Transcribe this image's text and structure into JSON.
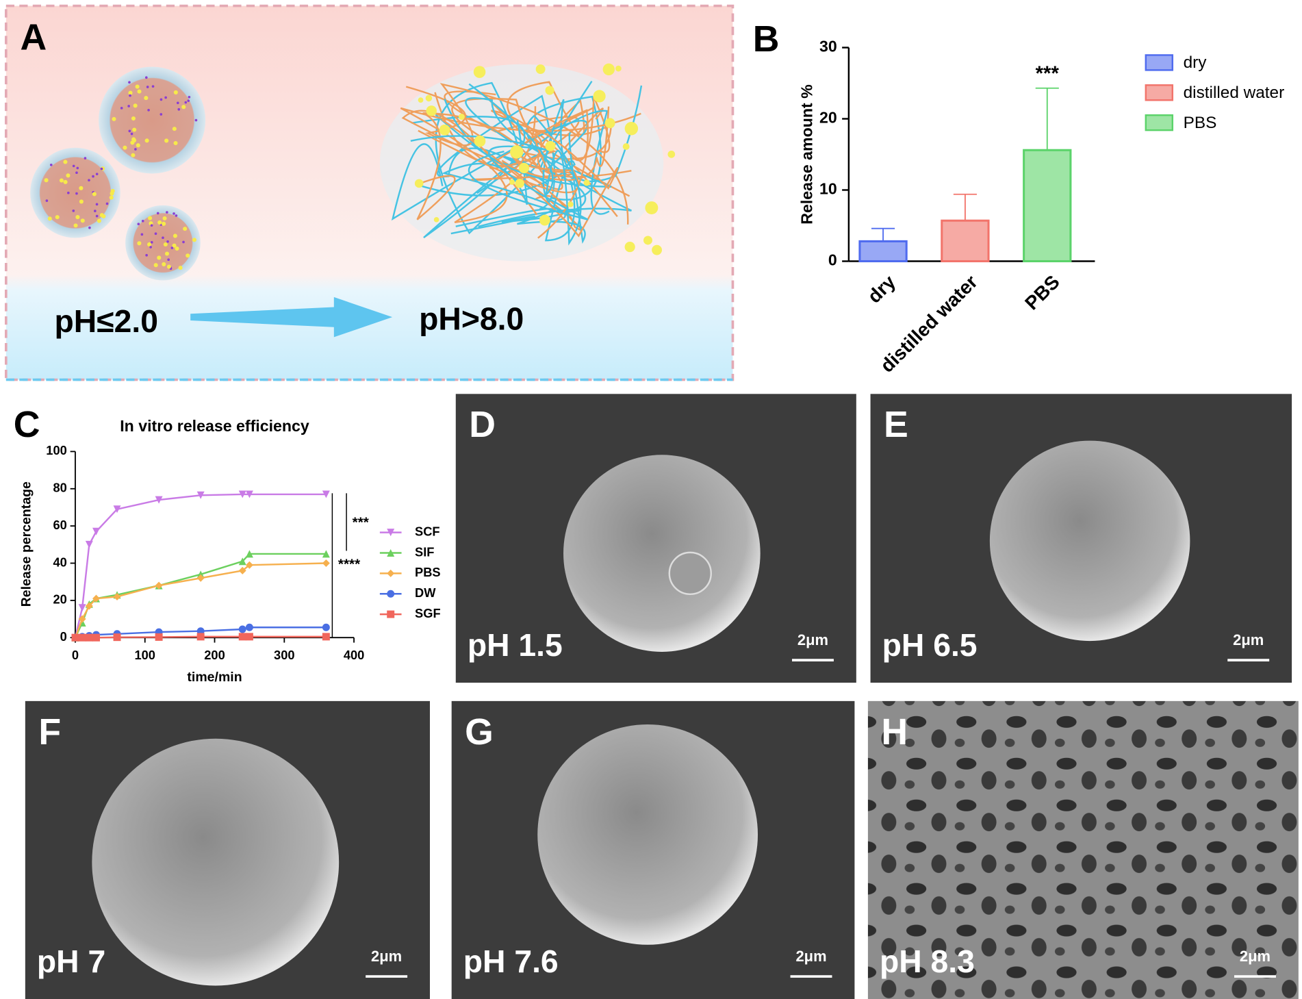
{
  "panel_a": {
    "letter": "A",
    "left_label": "pH≤2.0",
    "right_label": "pH>8.0"
  },
  "chart_data": [
    {
      "type": "bar",
      "panel_label": "B",
      "ylabel": "Release amount %",
      "categories": [
        "dry",
        "distilled water",
        "PBS"
      ],
      "values": [
        2.8,
        5.7,
        15.6
      ],
      "errors": [
        1.8,
        3.7,
        8.7
      ],
      "colors": [
        "#4f6bef",
        "#f2746b",
        "#5bd36a"
      ],
      "fills": [
        "#98a8f5",
        "#f6aaa4",
        "#9ee5a5"
      ],
      "annotation": "***",
      "ylim": [
        0,
        30
      ],
      "yticks": [
        0,
        10,
        20,
        30
      ],
      "legend": "top-right"
    },
    {
      "type": "line",
      "panel_label": "C",
      "title": "In vitro release efficiency",
      "xlabel": "time/min",
      "ylabel": "Release percentage",
      "x": [
        0,
        10,
        20,
        30,
        60,
        120,
        180,
        240,
        250,
        360
      ],
      "series": [
        {
          "name": "SCF",
          "color": "#c97be6",
          "marker": "triangle-down",
          "values": [
            0,
            16,
            50,
            57,
            69,
            74,
            76.5,
            77,
            77,
            77
          ]
        },
        {
          "name": "SIF",
          "color": "#6cd05e",
          "marker": "triangle-up",
          "values": [
            0,
            8,
            18,
            21,
            23,
            28,
            34,
            41,
            45,
            45
          ]
        },
        {
          "name": "PBS",
          "color": "#f6b04e",
          "marker": "diamond",
          "values": [
            0,
            10,
            17,
            21,
            22,
            28,
            32,
            36,
            39,
            40
          ]
        },
        {
          "name": "DW",
          "color": "#4a6fe3",
          "marker": "circle",
          "values": [
            0,
            0.5,
            1,
            1.5,
            2,
            3,
            3.5,
            4.5,
            5.5,
            5.5
          ]
        },
        {
          "name": "SGF",
          "color": "#f0665c",
          "marker": "square",
          "values": [
            0,
            0,
            0,
            0,
            0.2,
            0.3,
            0.5,
            0.5,
            0.5,
            0.5
          ]
        }
      ],
      "significance": [
        "***",
        "****"
      ],
      "xlim": [
        0,
        400
      ],
      "xticks": [
        0,
        100,
        200,
        300,
        400
      ],
      "ylim": [
        0,
        100
      ],
      "yticks": [
        0,
        20,
        40,
        60,
        80,
        100
      ]
    }
  ],
  "sem_panels": [
    {
      "letter": "D",
      "label": "pH 1.5",
      "scale_bar": "2μm"
    },
    {
      "letter": "E",
      "label": "pH 6.5",
      "scale_bar": "2μm"
    },
    {
      "letter": "F",
      "label": "pH 7",
      "scale_bar": "2μm"
    },
    {
      "letter": "G",
      "label": "pH 7.6",
      "scale_bar": "2μm"
    },
    {
      "letter": "H",
      "label": "pH 8.3",
      "scale_bar": "2μm"
    }
  ]
}
